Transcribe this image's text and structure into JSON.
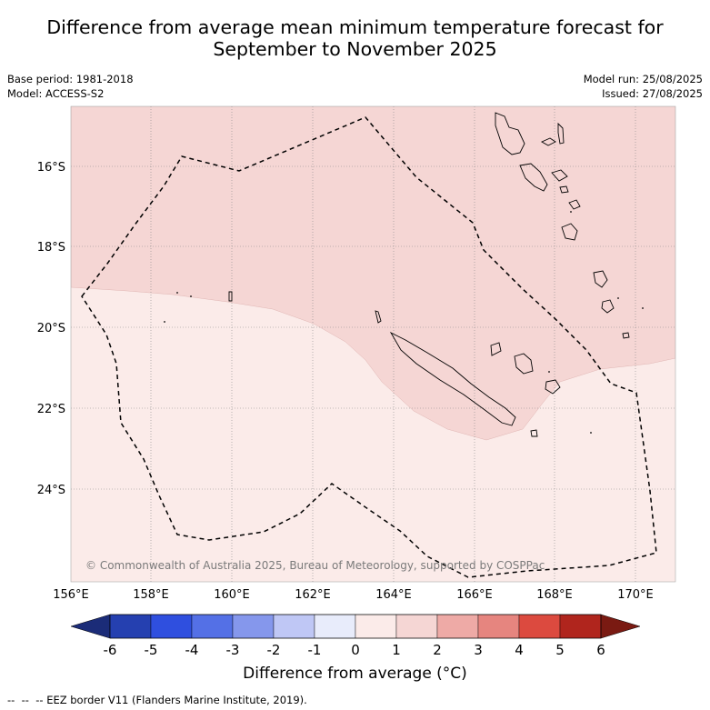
{
  "title_line1": "Difference from average mean minimum temperature forecast for",
  "title_line2": "September to November 2025",
  "base_period": "Base period: 1981-2018",
  "model": "Model: ACCESS-S2",
  "model_run": "Model run: 25/08/2025",
  "issued": "Issued: 27/08/2025",
  "copyright": "© Commonwealth of Australia 2025, Bureau of Meteorology, supported by COSPPac",
  "x_ticks": [
    "156°E",
    "158°E",
    "160°E",
    "162°E",
    "164°E",
    "166°E",
    "168°E",
    "170°E"
  ],
  "y_ticks": [
    "16°S",
    "18°S",
    "20°S",
    "22°S",
    "24°S"
  ],
  "colorbar": {
    "ticks": [
      "-6",
      "-5",
      "-4",
      "-3",
      "-2",
      "-1",
      "0",
      "1",
      "2",
      "3",
      "4",
      "5",
      "6"
    ],
    "colors": [
      "#1b2c78",
      "#2540b0",
      "#2f4fdf",
      "#5470e6",
      "#8597ec",
      "#bfc7f5",
      "#e8ecfb",
      "#fbebe9",
      "#f5d6d4",
      "#eeaaa6",
      "#e6857f",
      "#dc4a3f",
      "#b0251d",
      "#7a1a12"
    ],
    "label": "Difference from average (°C)"
  },
  "field_colors": {
    "range_0_1": "#fbebe9",
    "range_1_2": "#f5d6d4"
  },
  "legend_note": "-- EEZ border V11 (Flanders Marine Institute, 2019)."
}
